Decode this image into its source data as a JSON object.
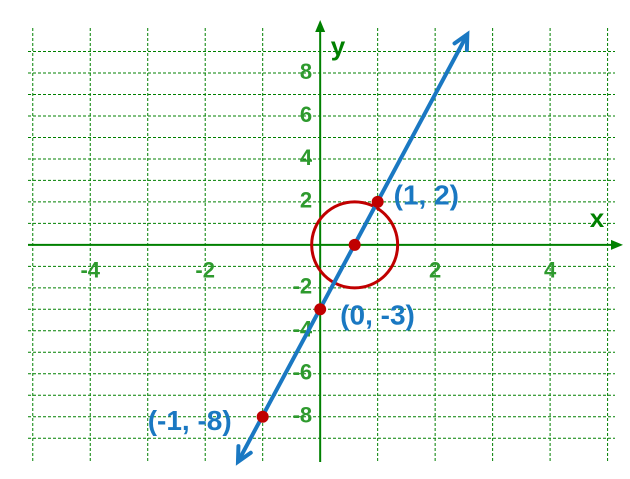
{
  "chart_data": {
    "type": "line",
    "x_label": "x",
    "y_label": "y",
    "xlim": [
      -5.57,
      5.39
    ],
    "ylim": [
      -10.9,
      11.4
    ],
    "xticks": [
      -4,
      -2,
      2,
      4
    ],
    "yticks": [
      -8,
      -6,
      -4,
      -2,
      2,
      4,
      6,
      8
    ],
    "x_gridlines": [
      -5,
      -4,
      -3,
      -2,
      -1,
      1,
      2,
      3,
      4,
      5
    ],
    "y_gridlines": [
      -9,
      -8,
      -7,
      -6,
      -5,
      -4,
      -3,
      -2,
      -1,
      1,
      2,
      3,
      4,
      5,
      6,
      7,
      8,
      9
    ],
    "grid": true,
    "axis_color": "#008000",
    "tick_label_color": "#2e9a2e",
    "series": [
      {
        "color": "#1a78c2",
        "x": [
          -1.43,
          2.56
        ],
        "values": [
          -10.1,
          9.8
        ]
      }
    ],
    "points": {
      "x": [
        -1,
        0,
        1
      ],
      "values": [
        -8,
        -3,
        2
      ],
      "labels": [
        "(-1, -8)",
        "(0, -3)",
        "(1, 2)"
      ],
      "color": "#c00000",
      "label_color": "#1a78c2"
    },
    "highlight": {
      "x": 0.6,
      "y": 0,
      "color": "#c00000"
    }
  }
}
